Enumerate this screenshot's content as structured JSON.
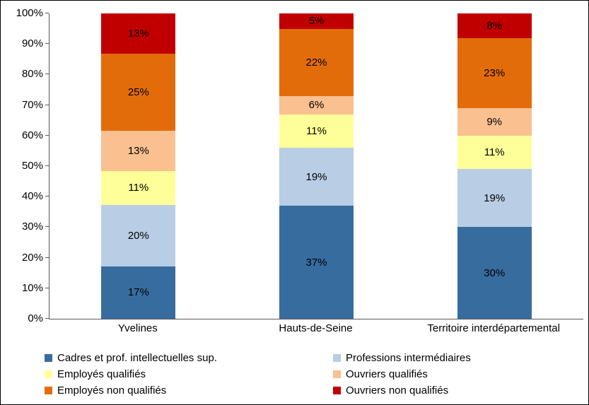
{
  "chart_data": {
    "type": "bar",
    "stacked": true,
    "percent": true,
    "title": "",
    "xlabel": "",
    "ylabel": "",
    "grid": false,
    "legend_position": "bottom",
    "value_suffix": "%",
    "categories": [
      "Yvelines",
      "Hauts-de-Seine",
      "Territoire interdépartemental"
    ],
    "series": [
      {
        "name": "Cadres et prof. intellectuelles sup.",
        "color": "#376C9F",
        "values": [
          17,
          37,
          30
        ]
      },
      {
        "name": "Professions intermédiaires",
        "color": "#B9CDE5",
        "values": [
          20,
          19,
          19
        ]
      },
      {
        "name": "Employés qualifiés",
        "color": "#FFFF99",
        "values": [
          11,
          11,
          11
        ]
      },
      {
        "name": "Ouvriers qualifiés",
        "color": "#FAC090",
        "values": [
          13,
          6,
          9
        ]
      },
      {
        "name": "Employés non qualifiés",
        "color": "#E36C0A",
        "values": [
          25,
          22,
          23
        ]
      },
      {
        "name": "Ouvriers non qualifiés",
        "color": "#C00000",
        "values": [
          13,
          5,
          8
        ]
      }
    ],
    "y_axis": {
      "min": 0,
      "max": 100,
      "tick_step": 10,
      "tick_labels": [
        "0%",
        "10%",
        "20%",
        "30%",
        "40%",
        "50%",
        "60%",
        "70%",
        "80%",
        "90%",
        "100%"
      ]
    }
  }
}
